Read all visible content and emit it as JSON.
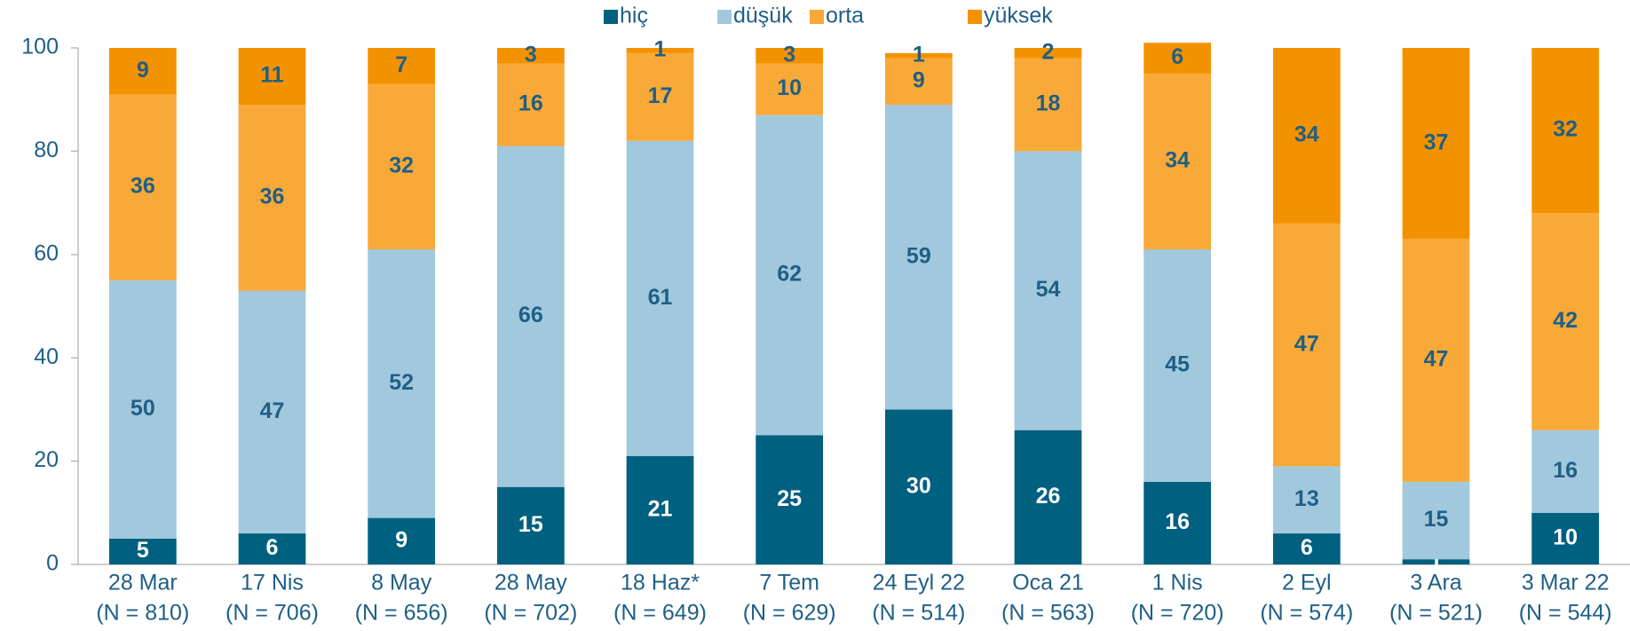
{
  "chart_data": {
    "type": "stacked_bar",
    "categories": [
      [
        "28 Mar",
        "(N = 810)"
      ],
      [
        "17 Nis",
        "(N = 706)"
      ],
      [
        "8 May",
        "(N = 656)"
      ],
      [
        "28 May",
        "(N = 702)"
      ],
      [
        "18 Haz*",
        "(N = 649)"
      ],
      [
        "7 Tem",
        "(N = 629)"
      ],
      [
        "24 Eyl 22",
        "(N = 514)"
      ],
      [
        "Oca 21",
        "(N = 563)"
      ],
      [
        "1 Nis",
        "(N = 720)"
      ],
      [
        "2 Eyl",
        "(N  = 574)"
      ],
      [
        "3 Ara",
        "(N = 521)"
      ],
      [
        "3 Mar 22",
        "(N = 544)"
      ]
    ],
    "series": [
      {
        "name": "hiç",
        "color": "#00607f",
        "label_color": "#ffffff",
        "values": [
          5,
          6,
          9,
          15,
          21,
          25,
          30,
          26,
          16,
          6,
          1,
          10
        ]
      },
      {
        "name": "düşük",
        "color": "#a2c8de",
        "label_color": "#1f5f86",
        "values": [
          50,
          47,
          52,
          66,
          61,
          62,
          59,
          54,
          45,
          13,
          15,
          16
        ]
      },
      {
        "name": "orta",
        "color": "#f8a937",
        "label_color": "#1f5f86",
        "values": [
          36,
          36,
          32,
          16,
          17,
          10,
          9,
          18,
          34,
          47,
          47,
          42
        ]
      },
      {
        "name": "yüksek",
        "color": "#f39200",
        "label_color": "#1f5f86",
        "values": [
          9,
          11,
          7,
          3,
          1,
          3,
          1,
          2,
          6,
          34,
          37,
          32
        ]
      }
    ],
    "ylim": [
      0,
      100
    ],
    "yticks": [
      0,
      20,
      40,
      60,
      80,
      100
    ],
    "grid": false,
    "legend": "top"
  }
}
